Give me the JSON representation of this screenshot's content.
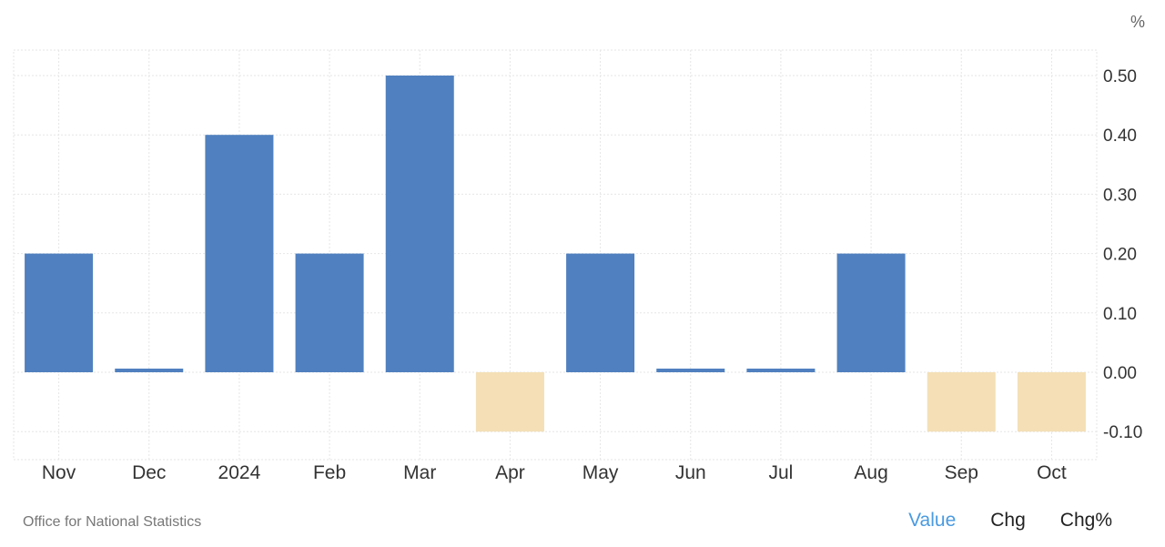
{
  "chart_data": {
    "type": "bar",
    "unit": "%",
    "categories": [
      "Nov",
      "Dec",
      "2024",
      "Feb",
      "Mar",
      "Apr",
      "May",
      "Jun",
      "Jul",
      "Aug",
      "Sep",
      "Oct"
    ],
    "values": [
      0.2,
      0.0,
      0.4,
      0.2,
      0.5,
      -0.1,
      0.2,
      0.0,
      0.0,
      0.2,
      -0.1,
      -0.1
    ],
    "y_ticks": [
      "0.50",
      "0.40",
      "0.30",
      "0.20",
      "0.10",
      "0.00",
      "-0.10"
    ],
    "ylim": [
      -0.15,
      0.55
    ],
    "grid": true,
    "y_axis_position": "right",
    "colors": {
      "positive": "#5080bf",
      "negative": "#f4dfb6",
      "grid": "#e6e6e6"
    }
  },
  "footer": {
    "source": "Office for National Statistics",
    "toggles": [
      "Value",
      "Chg",
      "Chg%"
    ],
    "active_toggle": "Value",
    "active_color": "#4a9ae0"
  }
}
